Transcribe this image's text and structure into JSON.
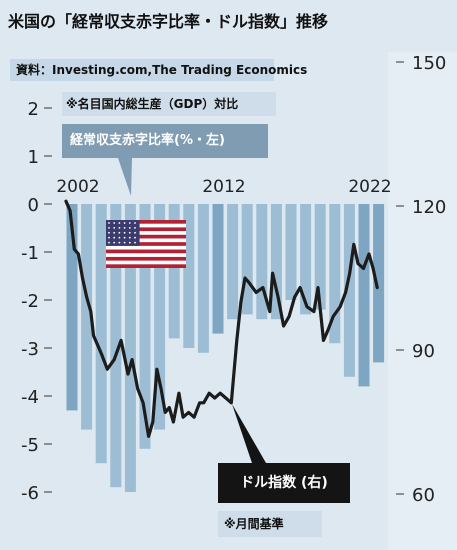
{
  "title": "米国の「経常収支赤字比率・ドル指数」推移",
  "source": "資料：Investing.com,The Trading Economics",
  "note_gdp": "※名目国内総生産（GDP）対比",
  "note_monthly": "※月間基準",
  "colors": {
    "background": "#dde8f1",
    "bar": "#9dbdd4",
    "bar_dark": "#7ea6c3",
    "line": "#1c1c1c",
    "label_box": "#7f9cb3",
    "dark_box": "#141414"
  },
  "chart_data": {
    "type": "bar+line",
    "legend_bar": "経常収支赤字比率(%・左)",
    "legend_line": "ドル指数 (右)",
    "x_ticks": [
      "2002",
      "2012",
      "2022"
    ],
    "left_axis": {
      "ticks": [
        "2",
        "1",
        "0",
        "-1",
        "-2",
        "-3",
        "-4",
        "-5",
        "-6"
      ],
      "range": [
        -6,
        2
      ]
    },
    "right_axis": {
      "ticks": [
        "150",
        "120",
        "90",
        "60"
      ],
      "range": [
        60,
        150
      ]
    },
    "bars": {
      "name": "経常収支赤字比率",
      "x": [
        2002,
        2003,
        2004,
        2005,
        2006,
        2007,
        2008,
        2009,
        2010,
        2011,
        2012,
        2013,
        2014,
        2015,
        2016,
        2017,
        2018,
        2019,
        2020,
        2021,
        2022,
        2023
      ],
      "values": [
        -4.3,
        -4.7,
        -5.4,
        -5.9,
        -6.0,
        -5.1,
        -4.7,
        -2.8,
        -3.0,
        -3.1,
        -2.7,
        -2.4,
        -2.3,
        -2.4,
        -2.4,
        -2.0,
        -2.3,
        -2.2,
        -2.9,
        -3.6,
        -3.8,
        -3.3
      ]
    },
    "line": {
      "name": "ドル指数",
      "x": [
        2002.0,
        2002.3,
        2002.6,
        2002.9,
        2003.2,
        2003.5,
        2003.8,
        2004.0,
        2004.3,
        2004.6,
        2005.0,
        2005.5,
        2006.0,
        2006.5,
        2006.8,
        2007.2,
        2007.6,
        2008.0,
        2008.3,
        2008.6,
        2008.9,
        2009.2,
        2009.5,
        2009.8,
        2010.2,
        2010.5,
        2010.9,
        2011.3,
        2011.7,
        2012.0,
        2012.4,
        2012.8,
        2013.2,
        2013.6,
        2014.0,
        2014.4,
        2014.7,
        2015.0,
        2015.3,
        2015.8,
        2016.3,
        2016.8,
        2017.0,
        2017.4,
        2017.8,
        2018.2,
        2018.6,
        2019.0,
        2019.5,
        2020.0,
        2020.3,
        2020.7,
        2021.0,
        2021.4,
        2021.9,
        2022.3,
        2022.6,
        2022.9,
        2023.2,
        2023.6,
        2024.0,
        2024.3,
        2024.6
      ],
      "values": [
        121,
        119,
        111,
        110,
        105,
        101,
        98,
        93,
        91,
        89,
        86,
        88,
        92,
        85,
        88,
        82,
        79,
        72,
        75,
        86,
        82,
        77,
        78,
        75,
        81,
        76,
        77,
        76,
        79,
        79,
        81,
        80,
        81,
        80,
        79,
        92,
        100,
        105,
        104,
        102,
        103,
        98,
        106,
        101,
        95,
        97,
        101,
        103,
        99,
        98,
        103,
        92,
        94,
        97,
        99,
        102,
        106,
        112,
        108,
        107,
        110,
        107,
        103
      ]
    }
  }
}
